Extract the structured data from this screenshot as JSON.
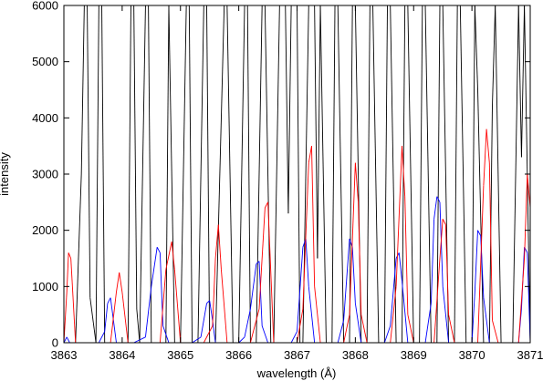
{
  "chart_data": {
    "type": "line",
    "title": "",
    "xlabel": "wavelength (Å)",
    "ylabel": "intensity",
    "xlim": [
      3863,
      3871
    ],
    "ylim": [
      0,
      6000
    ],
    "xticks": [
      "3863",
      "3864",
      "3865",
      "3866",
      "3867",
      "3868",
      "3869",
      "3870",
      "3871"
    ],
    "yticks": [
      "0",
      "1000",
      "2000",
      "3000",
      "4000",
      "5000",
      "6000"
    ],
    "grid": false,
    "legend": "none",
    "series": [
      {
        "color": "#000000",
        "x": [
          3863.0,
          3863.2,
          3863.3,
          3863.35,
          3863.4,
          3863.45,
          3863.55,
          3863.6,
          3863.65,
          3863.7,
          3863.8,
          3864.1,
          3864.15,
          3864.2,
          3864.25,
          3864.3,
          3864.4,
          3864.45,
          3864.5,
          3864.6,
          3864.75,
          3864.8,
          3864.9,
          3865.0,
          3865.1,
          3865.15,
          3865.2,
          3865.3,
          3865.4,
          3865.45,
          3865.5,
          3865.6,
          3865.75,
          3865.8,
          3865.9,
          3866.0,
          3866.1,
          3866.15,
          3866.2,
          3866.3,
          3866.4,
          3866.45,
          3866.55,
          3866.6,
          3866.7,
          3866.8,
          3866.85,
          3866.9,
          3867.0,
          3867.05,
          3867.1,
          3867.2,
          3867.3,
          3867.35,
          3867.4,
          3867.5,
          3867.6,
          3867.65,
          3867.7,
          3867.8,
          3867.9,
          3867.95,
          3868.0,
          3868.1,
          3868.2,
          3868.25,
          3868.3,
          3868.4,
          3868.5,
          3868.55,
          3868.6,
          3868.7,
          3868.8,
          3868.85,
          3868.9,
          3869.0,
          3869.1,
          3869.15,
          3869.2,
          3869.3,
          3869.4,
          3869.45,
          3869.5,
          3869.6,
          3869.7,
          3869.75,
          3869.8,
          3869.9,
          3870.0,
          3870.05,
          3870.1,
          3870.2,
          3870.3,
          3870.35,
          3870.4,
          3870.5,
          3870.6,
          3870.7,
          3870.8,
          3870.85,
          3870.9,
          3871.0
        ],
        "values": [
          0,
          0,
          3000,
          6000,
          6000,
          800,
          0,
          6000,
          6000,
          0,
          0,
          0,
          6000,
          6000,
          600,
          0,
          6000,
          6000,
          0,
          0,
          0,
          6000,
          0,
          0,
          6000,
          6000,
          0,
          0,
          6000,
          6000,
          0,
          0,
          6000,
          6000,
          0,
          0,
          6000,
          6000,
          0,
          0,
          6000,
          6000,
          0,
          0,
          6000,
          6000,
          2300,
          6000,
          6000,
          0,
          0,
          6000,
          6000,
          1500,
          6000,
          0,
          0,
          6000,
          6000,
          0,
          0,
          6000,
          6000,
          0,
          0,
          6000,
          6000,
          0,
          0,
          6000,
          6000,
          0,
          0,
          6000,
          6000,
          0,
          0,
          6000,
          6000,
          0,
          0,
          6000,
          6000,
          0,
          0,
          6000,
          6000,
          0,
          0,
          6000,
          4500,
          0,
          0,
          4200,
          6000,
          0,
          0,
          0,
          6000,
          3300,
          6000,
          0
        ]
      },
      {
        "color": "#0000ff",
        "x": [
          3863.0,
          3863.05,
          3863.1,
          3863.6,
          3863.7,
          3863.75,
          3863.8,
          3863.9,
          3864.2,
          3864.4,
          3864.5,
          3864.6,
          3864.65,
          3864.7,
          3864.8,
          3865.2,
          3865.35,
          3865.45,
          3865.5,
          3865.55,
          3865.6,
          3865.7,
          3866.0,
          3866.1,
          3866.2,
          3866.3,
          3866.35,
          3866.4,
          3866.5,
          3866.9,
          3867.0,
          3867.1,
          3867.15,
          3867.2,
          3867.3,
          3867.7,
          3867.8,
          3867.9,
          3867.95,
          3868.0,
          3868.1,
          3868.5,
          3868.6,
          3868.7,
          3868.75,
          3868.8,
          3868.9,
          3869.2,
          3869.3,
          3869.35,
          3869.4,
          3869.45,
          3869.5,
          3869.6,
          3870.0,
          3870.05,
          3870.1,
          3870.15,
          3870.2,
          3870.3,
          3870.8,
          3870.85,
          3870.9,
          3870.95,
          3871.0
        ],
        "values": [
          0,
          100,
          0,
          0,
          200,
          700,
          800,
          0,
          0,
          100,
          1000,
          1700,
          1600,
          300,
          0,
          0,
          100,
          700,
          750,
          400,
          0,
          0,
          0,
          100,
          600,
          1400,
          1450,
          300,
          0,
          0,
          200,
          1700,
          1850,
          1000,
          0,
          0,
          400,
          1850,
          1700,
          700,
          0,
          0,
          300,
          1500,
          1600,
          1100,
          0,
          0,
          700,
          2200,
          2600,
          2500,
          1000,
          0,
          0,
          900,
          2000,
          1900,
          800,
          0,
          0,
          600,
          1700,
          1600,
          0
        ]
      },
      {
        "color": "#ff0000",
        "x": [
          3863.0,
          3863.05,
          3863.08,
          3863.12,
          3863.2,
          3863.5,
          3863.8,
          3863.9,
          3863.95,
          3864.0,
          3864.1,
          3864.5,
          3864.65,
          3864.75,
          3864.85,
          3864.9,
          3865.0,
          3865.4,
          3865.55,
          3865.6,
          3865.65,
          3865.7,
          3865.8,
          3866.2,
          3866.35,
          3866.45,
          3866.5,
          3866.6,
          3867.0,
          3867.1,
          3867.2,
          3867.25,
          3867.3,
          3867.4,
          3867.8,
          3867.9,
          3868.0,
          3868.05,
          3868.1,
          3868.2,
          3868.6,
          3868.7,
          3868.8,
          3868.85,
          3868.9,
          3869.0,
          3869.35,
          3869.45,
          3869.5,
          3869.55,
          3869.6,
          3869.7,
          3870.1,
          3870.2,
          3870.25,
          3870.3,
          3870.35,
          3870.45,
          3870.8,
          3870.9,
          3870.95,
          3871.0
        ],
        "values": [
          0,
          900,
          1600,
          1500,
          0,
          0,
          0,
          900,
          1250,
          900,
          0,
          0,
          0,
          1300,
          1800,
          1300,
          0,
          0,
          300,
          1500,
          2100,
          1300,
          0,
          0,
          600,
          2400,
          2500,
          0,
          0,
          600,
          3200,
          3500,
          1000,
          0,
          0,
          500,
          3200,
          2500,
          500,
          0,
          0,
          1000,
          3500,
          2600,
          500,
          0,
          0,
          1500,
          2200,
          2100,
          500,
          0,
          0,
          2800,
          3800,
          3200,
          400,
          0,
          0,
          1500,
          3000,
          2400
        ]
      }
    ]
  }
}
